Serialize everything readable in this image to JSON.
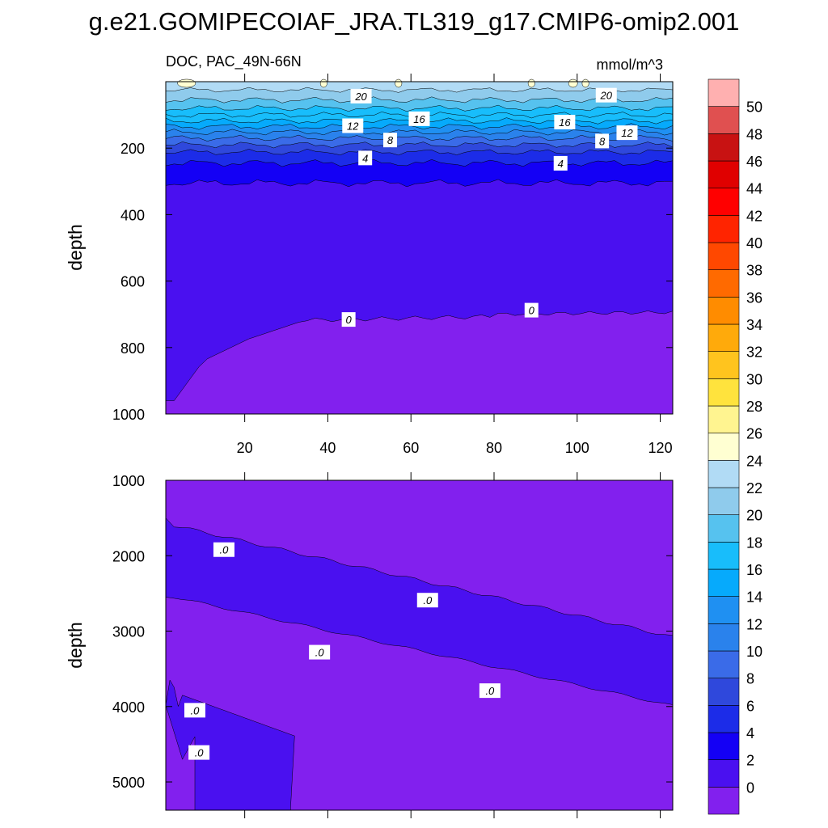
{
  "title": "g.e21.GOMIPECOIAF_JRA.TL319_g17.CMIP6-omip2.001",
  "chart_data": {
    "type": "contour",
    "variable_label": "DOC, PAC_49N-66N",
    "units": "mmol/m^3",
    "x_range": [
      1,
      123
    ],
    "x_ticks": [
      "20",
      "40",
      "60",
      "80",
      "100",
      "120"
    ],
    "x_tick_values": [
      20,
      40,
      60,
      80,
      100,
      120
    ],
    "top_panel": {
      "ylabel": "depth",
      "ylim": [
        0,
        1000
      ],
      "y_ticks": [
        "200",
        "400",
        "600",
        "800",
        "1000"
      ],
      "y_tick_values": [
        200,
        400,
        600,
        800,
        1000
      ],
      "contour_labels": [
        {
          "text": "20",
          "x": 48,
          "y": 46
        },
        {
          "text": "20",
          "x": 107,
          "y": 43
        },
        {
          "text": "16",
          "x": 62,
          "y": 114
        },
        {
          "text": "16",
          "x": 97,
          "y": 124
        },
        {
          "text": "12",
          "x": 46,
          "y": 135
        },
        {
          "text": "12",
          "x": 112,
          "y": 156
        },
        {
          "text": "8",
          "x": 55,
          "y": 178
        },
        {
          "text": "8",
          "x": 106,
          "y": 181
        },
        {
          "text": "4",
          "x": 49,
          "y": 232
        },
        {
          "text": "4",
          "x": 96,
          "y": 248
        },
        {
          "text": "0",
          "x": 45,
          "y": 718
        },
        {
          "text": "0",
          "x": 89,
          "y": 690
        }
      ]
    },
    "bottom_panel": {
      "ylabel": "depth",
      "ylim": [
        1000,
        5375
      ],
      "y_ticks": [
        "1000",
        "2000",
        "3000",
        "4000",
        "5000"
      ],
      "y_tick_values": [
        1000,
        2000,
        3000,
        4000,
        5000
      ],
      "contour_labels": [
        {
          "text": ".0",
          "x": 15,
          "y": 1930
        },
        {
          "text": ".0",
          "x": 64,
          "y": 2600
        },
        {
          "text": ".0",
          "x": 38,
          "y": 3290
        },
        {
          "text": ".0",
          "x": 79,
          "y": 3800
        },
        {
          "text": ".0",
          "x": 8,
          "y": 4060
        },
        {
          "text": ".0",
          "x": 9,
          "y": 4620
        }
      ]
    },
    "colorbar": {
      "levels": [
        "0",
        "2",
        "4",
        "6",
        "8",
        "10",
        "12",
        "14",
        "16",
        "18",
        "20",
        "22",
        "24",
        "26",
        "28",
        "30",
        "32",
        "34",
        "36",
        "38",
        "40",
        "42",
        "44",
        "46",
        "48",
        "50"
      ],
      "colors": [
        "#8220ee",
        "#4a10f0",
        "#1400f5",
        "#1c2ce8",
        "#2f48dc",
        "#3a6be8",
        "#2a82ec",
        "#1f90f2",
        "#06aafc",
        "#18bdfb",
        "#56c2ef",
        "#8fcbec",
        "#b1dbf5",
        "#ffffd2",
        "#fff490",
        "#ffe33d",
        "#ffc41e",
        "#ffaa0b",
        "#ff8c00",
        "#ff6a00",
        "#ff4800",
        "#ff2400",
        "#ff0000",
        "#e00000",
        "#c81212",
        "#e05050",
        "#ffb0b0"
      ]
    }
  }
}
